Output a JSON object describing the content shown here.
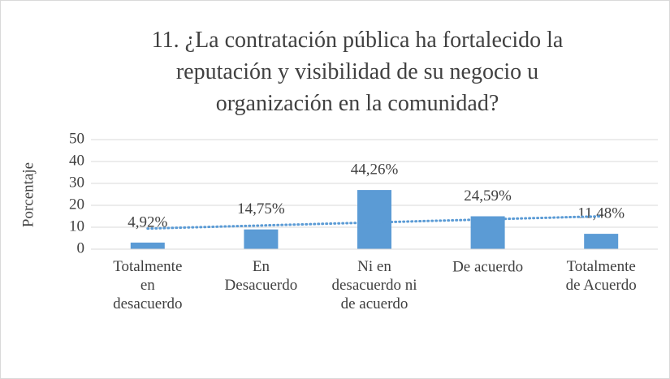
{
  "chart_data": {
    "type": "bar",
    "title": "11. ¿La contratación pública ha fortalecido la\nreputación y visibilidad de su negocio u\norganización en la comunidad?",
    "ylabel": "Porcentaje",
    "categories": [
      "Totalmente\nen\ndesacuerdo",
      "En\nDesacuerdo",
      "Ni en\ndesacuerdo ni\nde acuerdo",
      "De acuerdo",
      "Totalmente\nde Acuerdo"
    ],
    "values": [
      3,
      9,
      27,
      15,
      7
    ],
    "annotations": [
      "4,92%",
      "14,75%",
      "44,26%",
      "24,59%",
      "11,48%"
    ],
    "color": "#5b9bd5",
    "trendline": "linear",
    "trendline_color": "#5b9bd5",
    "ylim": [
      0,
      50
    ],
    "yticks": [
      0,
      10,
      20,
      30,
      40,
      50
    ],
    "grid": true
  }
}
